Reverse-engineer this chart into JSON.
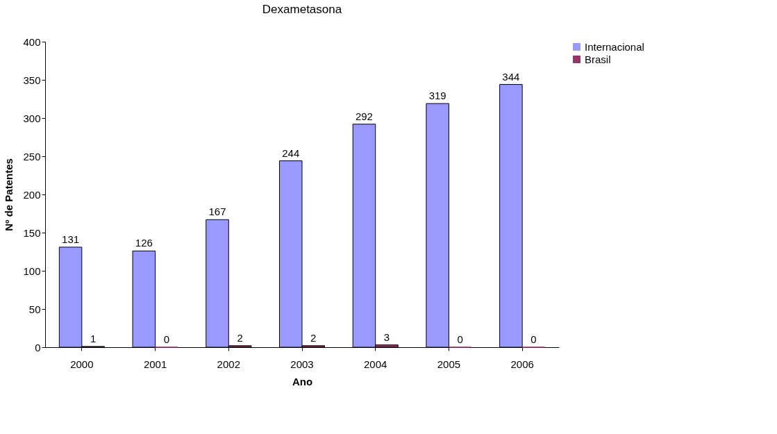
{
  "chart_data": {
    "type": "bar",
    "title": "Dexametasona",
    "xlabel": "Ano",
    "ylabel": "Nº de Patentes",
    "categories": [
      "2000",
      "2001",
      "2002",
      "2003",
      "2004",
      "2005",
      "2006"
    ],
    "series": [
      {
        "name": "Internacional",
        "color": "#9999ff",
        "values": [
          131,
          126,
          167,
          244,
          292,
          319,
          344
        ]
      },
      {
        "name": "Brasil",
        "color": "#993366",
        "values": [
          1,
          0,
          2,
          2,
          3,
          0,
          0
        ]
      }
    ],
    "ylim": [
      0,
      400
    ],
    "yticks": [
      0,
      50,
      100,
      150,
      200,
      250,
      300,
      350,
      400
    ],
    "grid": false,
    "legend": "right",
    "data_labels": true
  }
}
